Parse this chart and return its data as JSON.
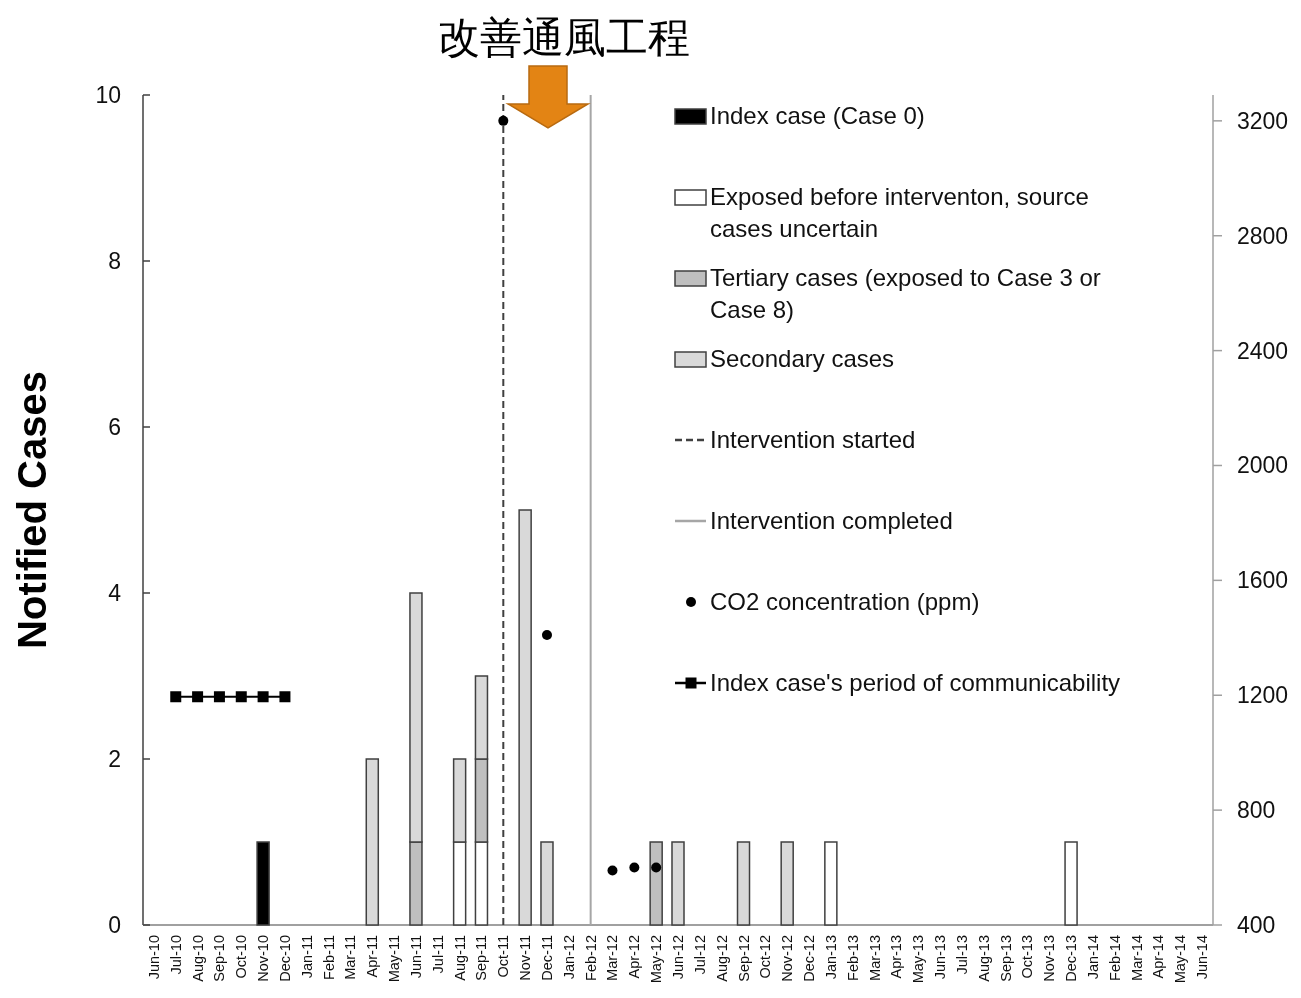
{
  "chart_data": {
    "type": "bar",
    "stacked": true,
    "categories": [
      "Jun-10",
      "Jul-10",
      "Aug-10",
      "Sep-10",
      "Oct-10",
      "Nov-10",
      "Dec-10",
      "Jan-11",
      "Feb-11",
      "Mar-11",
      "Apr-11",
      "May-11",
      "Jun-11",
      "Jul-11",
      "Aug-11",
      "Sep-11",
      "Oct-11",
      "Nov-11",
      "Dec-11",
      "Jan-12",
      "Feb-12",
      "Mar-12",
      "Apr-12",
      "May-12",
      "Jun-12",
      "Jul-12",
      "Aug-12",
      "Sep-12",
      "Oct-12",
      "Nov-12",
      "Dec-12",
      "Jan-13",
      "Feb-13",
      "Mar-13",
      "Apr-13",
      "May-13",
      "Jun-13",
      "Jul-13",
      "Aug-13",
      "Sep-13",
      "Oct-13",
      "Nov-13",
      "Dec-13",
      "Jan-14",
      "Feb-14",
      "Mar-14",
      "Apr-14",
      "May-14",
      "Jun-14"
    ],
    "ylabel": "Notified Cases",
    "ylim": [
      0,
      10
    ],
    "yticks": [
      0,
      2,
      4,
      6,
      8,
      10
    ],
    "y2lim": [
      400,
      3290
    ],
    "y2ticks": [
      400,
      800,
      1200,
      1600,
      2000,
      2400,
      2800,
      3200
    ],
    "legend": "top right",
    "series": [
      {
        "name": "Index case (Case 0)",
        "color": "#000000",
        "values": [
          null,
          null,
          null,
          null,
          null,
          1,
          null,
          null,
          null,
          null,
          null,
          null,
          null,
          null,
          null,
          null,
          null,
          null,
          null,
          null,
          null,
          null,
          null,
          null,
          null,
          null,
          null,
          null,
          null,
          null,
          null,
          null,
          null,
          null,
          null,
          null,
          null,
          null,
          null,
          null,
          null,
          null,
          null,
          null,
          null,
          null,
          null,
          null,
          null
        ]
      },
      {
        "name": "Exposed before interventon, source cases uncertain",
        "color": "#ffffff",
        "values": [
          null,
          null,
          null,
          null,
          null,
          null,
          null,
          null,
          null,
          null,
          null,
          null,
          null,
          null,
          1,
          1,
          null,
          null,
          null,
          null,
          null,
          null,
          null,
          null,
          null,
          null,
          null,
          null,
          null,
          null,
          null,
          1,
          null,
          null,
          null,
          null,
          null,
          null,
          null,
          null,
          null,
          null,
          1,
          null,
          null,
          null,
          null,
          null,
          null
        ]
      },
      {
        "name": "Tertiary cases (exposed to Case 3 or Case 8)",
        "color": "#bfbfbf",
        "values": [
          null,
          null,
          null,
          null,
          null,
          null,
          null,
          null,
          null,
          null,
          null,
          null,
          1,
          null,
          null,
          1,
          null,
          null,
          null,
          null,
          null,
          null,
          null,
          1,
          null,
          null,
          null,
          null,
          null,
          null,
          null,
          null,
          null,
          null,
          null,
          null,
          null,
          null,
          null,
          null,
          null,
          null,
          null,
          null,
          null,
          null,
          null,
          null,
          null
        ]
      },
      {
        "name": "Secondary cases",
        "color": "#d9d9d9",
        "values": [
          null,
          null,
          null,
          null,
          null,
          null,
          null,
          null,
          null,
          null,
          2,
          null,
          3,
          null,
          1,
          1,
          null,
          5,
          1,
          null,
          null,
          null,
          null,
          null,
          1,
          null,
          null,
          1,
          null,
          1,
          null,
          null,
          null,
          null,
          null,
          null,
          null,
          null,
          null,
          null,
          null,
          null,
          null,
          null,
          null,
          null,
          null,
          null,
          null
        ]
      },
      {
        "name": "Intervention started",
        "type": "line",
        "line_style": "dashed",
        "marker": "none",
        "color": "#404040",
        "x": [
          "Oct-11",
          "Oct-11"
        ],
        "values": [
          0,
          10
        ]
      },
      {
        "name": "Intervention completed",
        "type": "line",
        "line_style": "solid",
        "marker": "none",
        "color": "#a6a6a6",
        "x": [
          "Feb-12",
          "Feb-12"
        ],
        "values": [
          0,
          10
        ]
      },
      {
        "name": "CO2 concentration (ppm)",
        "type": "scatter",
        "axis": "y2",
        "marker": "circle",
        "color": "#000000",
        "values": [
          null,
          null,
          null,
          null,
          null,
          null,
          null,
          null,
          null,
          null,
          null,
          null,
          null,
          null,
          null,
          null,
          3200,
          null,
          1410,
          null,
          null,
          590,
          600,
          600,
          null,
          null,
          null,
          null,
          null,
          null,
          null,
          null,
          null,
          null,
          null,
          null,
          null,
          null,
          null,
          null,
          null,
          null,
          null,
          null,
          null,
          null,
          null,
          null,
          null
        ]
      },
      {
        "name": "Index case's period of communicability",
        "type": "line",
        "marker": "square",
        "color": "#000000",
        "values": [
          null,
          2.75,
          2.75,
          2.75,
          2.75,
          2.75,
          2.75,
          null,
          null,
          null,
          null,
          null,
          null,
          null,
          null,
          null,
          null,
          null,
          null,
          null,
          null,
          null,
          null,
          null,
          null,
          null,
          null,
          null,
          null,
          null,
          null,
          null,
          null,
          null,
          null,
          null,
          null,
          null,
          null,
          null,
          null,
          null,
          null,
          null,
          null,
          null,
          null,
          null,
          null
        ]
      }
    ],
    "annotations": [
      "改善通風工程"
    ]
  }
}
